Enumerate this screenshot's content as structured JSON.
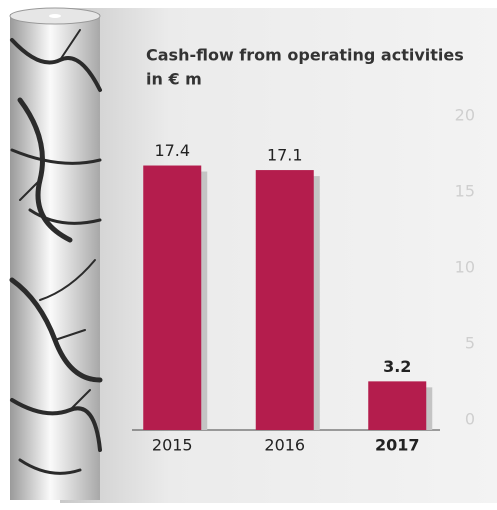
{
  "chart_data": {
    "type": "bar",
    "title": [
      "Cash-flow from operating activities",
      "in € m"
    ],
    "categories": [
      "2015",
      "2016",
      "2017"
    ],
    "values": [
      17.4,
      17.1,
      3.2
    ],
    "color": "#b41d4d",
    "highlight_index": 2,
    "ylim": [
      0,
      20
    ],
    "yticks": [
      0,
      5,
      10,
      15,
      20
    ],
    "grid": false
  }
}
